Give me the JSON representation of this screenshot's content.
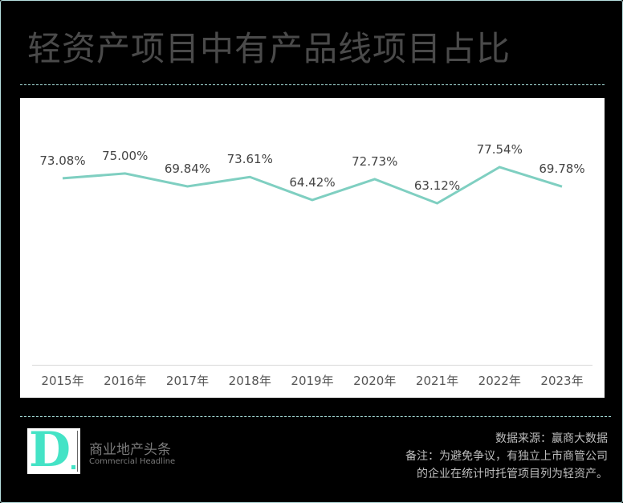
{
  "title": "轻资产项目中有产品线项目占比",
  "colors": {
    "background": "#000000",
    "panel": "#ffffff",
    "line": "#7fcfc1",
    "title_text": "#4a4a4a",
    "accent": "#44e3c6",
    "rule": "#a8e0dc"
  },
  "chart_data": {
    "type": "line",
    "title": "轻资产项目中有产品线项目占比",
    "xlabel": "",
    "ylabel": "",
    "categories": [
      "2015年",
      "2016年",
      "2017年",
      "2018年",
      "2019年",
      "2020年",
      "2021年",
      "2022年",
      "2023年"
    ],
    "series": [
      {
        "name": "有产品线项目占比",
        "values": [
          73.08,
          75.0,
          69.84,
          73.61,
          64.42,
          72.73,
          63.12,
          77.54,
          69.78
        ],
        "labels": [
          "73.08%",
          "75.00%",
          "69.84%",
          "73.61%",
          "64.42%",
          "72.73%",
          "63.12%",
          "77.54%",
          "69.78%"
        ]
      }
    ],
    "grid": false,
    "legend": "none",
    "data_labels": true
  },
  "brand": {
    "logo_letter": "D",
    "name_cn": "商业地产头条",
    "name_en": "Commercial Headline"
  },
  "notes": {
    "source": "数据来源：赢商大数据",
    "remark_line1": "备注：为避免争议，有独立上市商管公司",
    "remark_line2": "的企业在统计时托管项目列为轻资产。"
  }
}
